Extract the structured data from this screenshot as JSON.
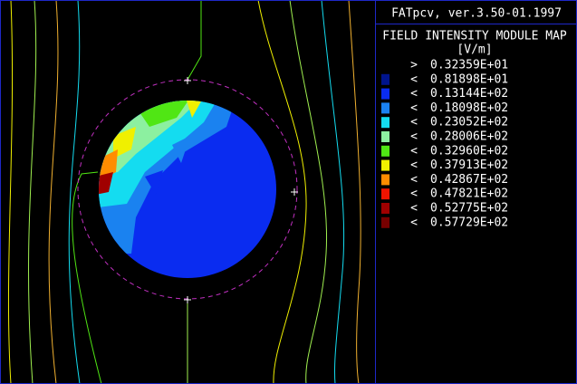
{
  "app_title": "FATpcv, ver.3.50-01.1997",
  "legend": {
    "title": "FIELD INTENSITY MODULE MAP",
    "unit": "[V/m]",
    "entries": [
      {
        "symbol": ">",
        "label": "0.32359E+01"
      },
      {
        "symbol": "<",
        "label": "0.81898E+01",
        "color": "#00148c"
      },
      {
        "symbol": "<",
        "label": "0.13144E+02",
        "color": "#0a2cf0"
      },
      {
        "symbol": "<",
        "label": "0.18098E+02",
        "color": "#1a82f0"
      },
      {
        "symbol": "<",
        "label": "0.23052E+02",
        "color": "#14dcf0"
      },
      {
        "symbol": "<",
        "label": "0.28006E+02",
        "color": "#8cf0a0"
      },
      {
        "symbol": "<",
        "label": "0.32960E+02",
        "color": "#50e614"
      },
      {
        "symbol": "<",
        "label": "0.37913E+02",
        "color": "#f0f000"
      },
      {
        "symbol": "<",
        "label": "0.42867E+02",
        "color": "#ff8c00"
      },
      {
        "symbol": "<",
        "label": "0.47821E+02",
        "color": "#f01400"
      },
      {
        "symbol": "<",
        "label": "0.52775E+02",
        "color": "#a00000"
      },
      {
        "symbol": "<",
        "label": "0.57729E+02",
        "color": "#780000"
      }
    ]
  }
}
